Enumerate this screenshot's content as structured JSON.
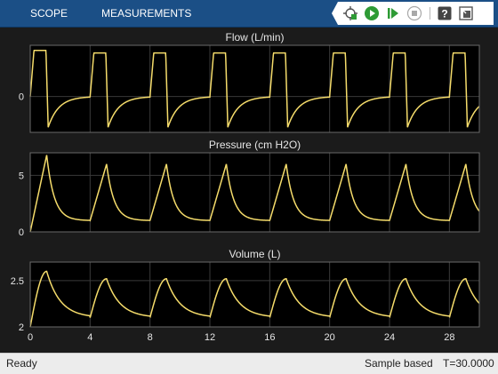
{
  "tabs": {
    "scope": "SCOPE",
    "measurements": "MEASUREMENTS"
  },
  "toolbar": {
    "icons": [
      "highlight-simulink-block-icon",
      "run-icon",
      "step-forward-icon",
      "stop-icon",
      "help-icon",
      "undock-icon"
    ],
    "accent": "#2e9b35"
  },
  "status": {
    "left": "Ready",
    "mode": "Sample based",
    "time": "T=30.0000"
  },
  "colors": {
    "trace": "#f5dc6b",
    "background": "#1b1b1b",
    "plot_bg": "#000000",
    "grid": "#3a3a3a",
    "axis_text": "#e6e6e6"
  },
  "chart_data": [
    {
      "type": "line",
      "title": "Flow (L/min)",
      "xlim": [
        0,
        30
      ],
      "ylim": [
        -0.7,
        1.0
      ],
      "yticks": [
        0
      ],
      "ytick_labels": [
        "0"
      ],
      "grid": true,
      "series": [
        {
          "kind": "flow",
          "period": 4,
          "first_peak": 0.9,
          "peak": 0.85,
          "trough": -0.6
        }
      ]
    },
    {
      "type": "line",
      "title": "Pressure (cm H2O)",
      "xlim": [
        0,
        30
      ],
      "ylim": [
        0,
        7
      ],
      "yticks": [
        0,
        5
      ],
      "ytick_labels": [
        "0",
        "5"
      ],
      "grid": true,
      "series": [
        {
          "kind": "pressure",
          "period": 4,
          "first_peak": 6.8,
          "peak": 6.0,
          "baseline": 1.0
        }
      ]
    },
    {
      "type": "line",
      "title": "Volume (L)",
      "xlim": [
        0,
        30
      ],
      "ylim": [
        2,
        2.7
      ],
      "yticks": [
        2,
        2.5
      ],
      "ytick_labels": [
        "2",
        "2.5"
      ],
      "grid": true,
      "xticks": [
        0,
        4,
        8,
        12,
        16,
        20,
        24,
        28
      ],
      "xtick_labels": [
        "0",
        "4",
        "8",
        "12",
        "16",
        "20",
        "24",
        "28"
      ],
      "series": [
        {
          "kind": "volume",
          "period": 4,
          "first_peak": 2.6,
          "peak": 2.52,
          "baseline": 2.1
        }
      ]
    }
  ]
}
